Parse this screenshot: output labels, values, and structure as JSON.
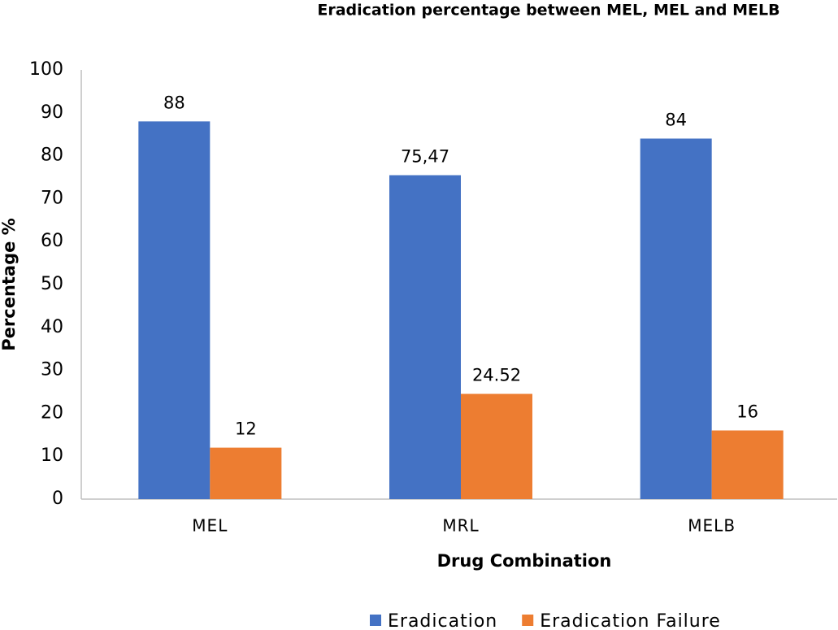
{
  "chart_data": {
    "type": "bar",
    "title": "Eradication percentage between MEL, MEL and MELB",
    "x_label": "Drug Combination",
    "y_label": "Percentage %",
    "categories": [
      "MEL",
      "MRL",
      "MELB"
    ],
    "series": [
      {
        "name": "Eradication",
        "color": "#4472c4",
        "values": [
          88,
          75.47,
          84
        ],
        "value_labels": [
          "88",
          "75,47",
          "84"
        ]
      },
      {
        "name": "Eradication Failure",
        "color": "#ed7d31",
        "values": [
          12,
          24.52,
          16
        ]
      }
    ],
    "ylim": [
      0,
      100
    ],
    "yticks": [
      0,
      10,
      20,
      30,
      40,
      50,
      60,
      70,
      80,
      90,
      100
    ],
    "grid": false,
    "legend": "bottom"
  }
}
